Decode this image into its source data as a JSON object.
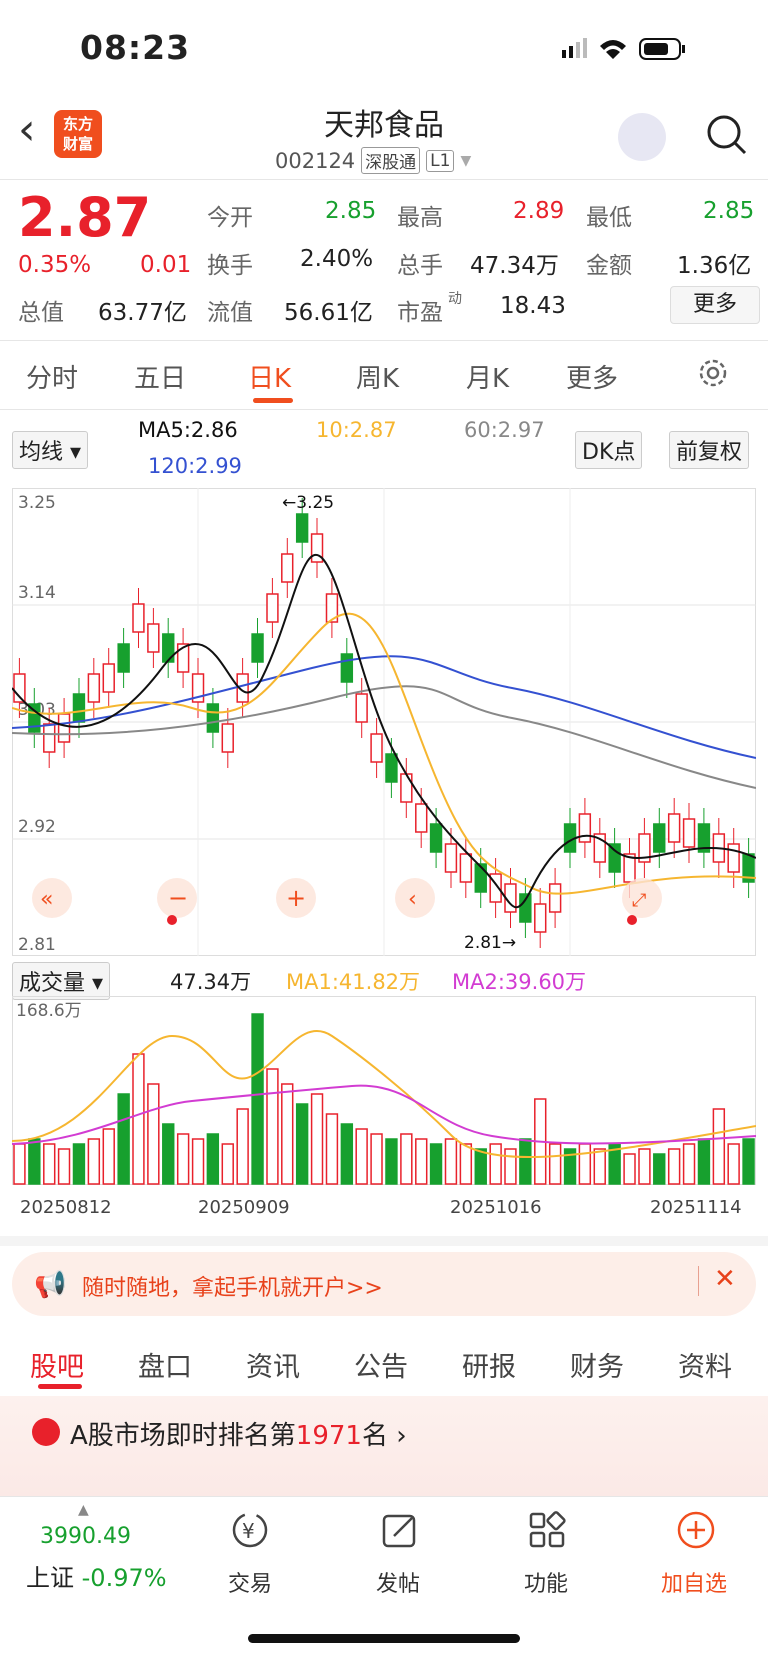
{
  "status": {
    "time": "08:23"
  },
  "header": {
    "back": "‹",
    "logo_line1": "东方",
    "logo_line2": "财富",
    "title": "天邦食品",
    "code": "002124",
    "tag1": "深股通",
    "tag2": "L1"
  },
  "quote": {
    "price": "2.87",
    "pct": "0.35%",
    "chg": "0.01",
    "open_label": "今开",
    "open": "2.85",
    "high_label": "最高",
    "high": "2.89",
    "low_label": "最低",
    "low": "2.85",
    "turnover_label": "换手",
    "turnover": "2.40%",
    "vol_label": "总手",
    "vol": "47.34万",
    "amt_label": "金额",
    "amt": "1.36亿",
    "mcap_label": "总值",
    "mcap": "63.77亿",
    "float_label": "流值",
    "float": "56.61亿",
    "pe_label": "市盈",
    "pe_sup": "动",
    "pe": "18.43",
    "more": "更多"
  },
  "ktabs": [
    "分时",
    "五日",
    "日K",
    "周K",
    "月K",
    "更多"
  ],
  "ma_row": {
    "select": "均线",
    "ma5": "MA5:2.86",
    "ma10": "10:2.87",
    "ma60": "60:2.97",
    "ma120": "120:2.99",
    "dk": "DK点",
    "fq": "前复权"
  },
  "vol_row": {
    "select": "成交量",
    "vol": "47.34万",
    "ma1": "MA1:41.82万",
    "ma2": "MA2:39.60万"
  },
  "chart_data": [
    {
      "type": "candlestick",
      "y_ticks": [
        "3.25",
        "3.14",
        "3.03",
        "2.92",
        "2.81"
      ],
      "ylim": [
        2.81,
        3.25
      ],
      "annotations": [
        "3.25",
        "2.81"
      ],
      "series": [
        {
          "name": "MA5"
        },
        {
          "name": "10"
        },
        {
          "name": "60"
        },
        {
          "name": "120"
        }
      ]
    },
    {
      "type": "bar",
      "y_max_label": "168.6万",
      "x_dates": [
        "20250812",
        "20250909",
        "20251016",
        "20251114"
      ],
      "series": [
        {
          "name": "MA1"
        },
        {
          "name": "MA2"
        }
      ]
    }
  ],
  "banner": {
    "text": "随时随地，拿起手机就开户>>"
  },
  "btabs": [
    "股吧",
    "盘口",
    "资讯",
    "公告",
    "研报",
    "财务",
    "资料"
  ],
  "rank": {
    "prefix": "A股市场即时排名第",
    "num": "1971",
    "suffix": "名"
  },
  "bottom": {
    "index_val": "3990.49",
    "index_name": "上证",
    "index_pct": "-0.97%",
    "nav": [
      "交易",
      "发帖",
      "功能",
      "加自选"
    ]
  },
  "colors": {
    "up": "#e8212b",
    "down": "#17a02e",
    "accent": "#f04e1e"
  }
}
